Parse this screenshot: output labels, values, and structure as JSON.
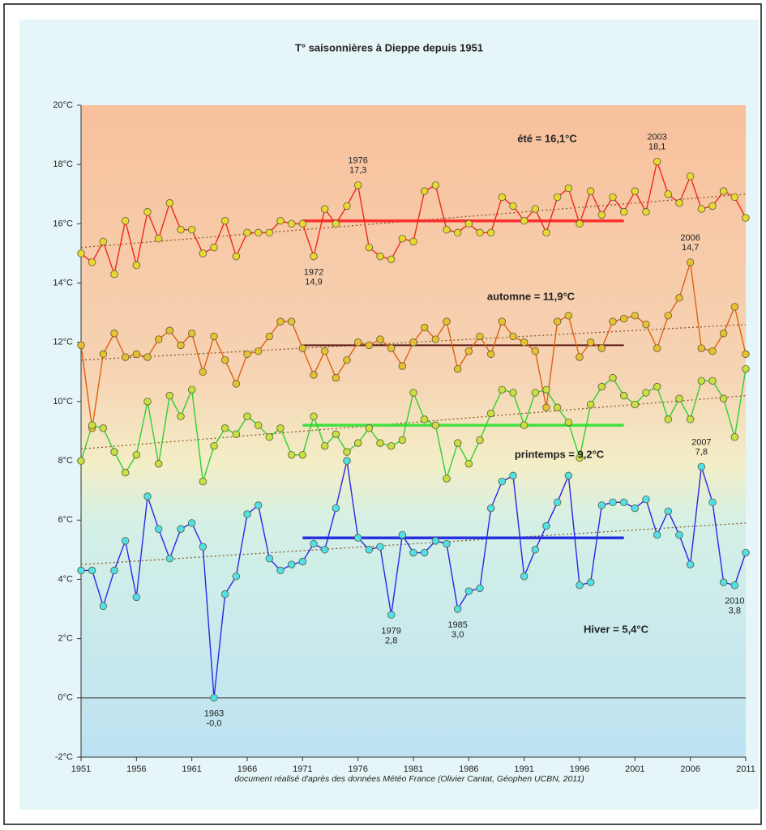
{
  "chart_data": {
    "type": "line",
    "title": "T° saisonnières à Dieppe depuis 1951",
    "caption": "document réalisé d'après des données Météo France (Olivier Cantat, Géophen UCBN, 2011)",
    "x": [
      1951,
      1952,
      1953,
      1954,
      1955,
      1956,
      1957,
      1958,
      1959,
      1960,
      1961,
      1962,
      1963,
      1964,
      1965,
      1966,
      1967,
      1968,
      1969,
      1970,
      1971,
      1972,
      1973,
      1974,
      1975,
      1976,
      1977,
      1978,
      1979,
      1980,
      1981,
      1982,
      1983,
      1984,
      1985,
      1986,
      1987,
      1988,
      1989,
      1990,
      1991,
      1992,
      1993,
      1994,
      1995,
      1996,
      1997,
      1998,
      1999,
      2000,
      2001,
      2002,
      2003,
      2004,
      2005,
      2006,
      2007,
      2008,
      2009,
      2010,
      2011
    ],
    "xlim": [
      1951,
      2011
    ],
    "xticks": [
      1951,
      1956,
      1961,
      1966,
      1971,
      1976,
      1981,
      1986,
      1991,
      1996,
      2001,
      2006,
      2011
    ],
    "ylim": [
      -2,
      20
    ],
    "yticks": [
      {
        "value": -2,
        "label": "-2°C"
      },
      {
        "value": 0,
        "label": "0°C"
      },
      {
        "value": 2,
        "label": "2°C"
      },
      {
        "value": 4,
        "label": "4°C"
      },
      {
        "value": 6,
        "label": "6°C"
      },
      {
        "value": 8,
        "label": "8°C"
      },
      {
        "value": 10,
        "label": "10°C"
      },
      {
        "value": 12,
        "label": "12°C"
      },
      {
        "value": 14,
        "label": "14°C"
      },
      {
        "value": 16,
        "label": "16°C"
      },
      {
        "value": 18,
        "label": "18°C"
      },
      {
        "value": 20,
        "label": "20°C"
      }
    ],
    "normal_period": [
      1971,
      2000
    ],
    "series": [
      {
        "color": "#f02818",
        "marker_color": "#e8d830",
        "mean_color": "#f83030",
        "values": [
          15.0,
          14.7,
          15.4,
          14.3,
          16.1,
          14.6,
          16.4,
          15.5,
          16.7,
          15.8,
          15.8,
          15.0,
          15.2,
          16.1,
          14.9,
          15.7,
          15.7,
          15.7,
          16.1,
          16.0,
          16.0,
          14.9,
          16.5,
          16.0,
          16.6,
          17.3,
          15.2,
          14.9,
          14.8,
          15.5,
          15.4,
          17.1,
          17.3,
          15.8,
          15.7,
          16.0,
          15.7,
          15.7,
          16.9,
          16.6,
          16.1,
          16.5,
          15.7,
          16.9,
          17.2,
          16.0,
          17.1,
          16.3,
          16.9,
          16.4,
          17.1,
          16.4,
          18.1,
          17.0,
          16.7,
          17.6,
          16.5,
          16.6,
          17.1,
          16.9,
          16.2
        ],
        "value_labels": [
          null,
          null,
          null,
          null,
          null,
          null,
          null,
          null,
          null,
          null,
          null,
          null,
          null,
          null,
          null,
          null,
          null,
          null,
          null,
          null,
          null,
          "14,9",
          null,
          null,
          null,
          "17,3",
          null,
          null,
          null,
          null,
          null,
          null,
          null,
          null,
          null,
          null,
          null,
          null,
          null,
          null,
          null,
          null,
          null,
          null,
          null,
          null,
          null,
          null,
          null,
          null,
          null,
          null,
          "18,1",
          null,
          null,
          null,
          null,
          null,
          null,
          null,
          null
        ],
        "trend": [
          15.2,
          17.0
        ],
        "normal": 16.1,
        "normal_label": "été = 16,1°C"
      },
      {
        "color": "#e06010",
        "marker_color": "#e8c030",
        "mean_color": "#5a1a10",
        "values": [
          11.9,
          9.1,
          11.6,
          12.3,
          11.5,
          11.6,
          11.5,
          12.1,
          12.4,
          11.9,
          12.3,
          11.0,
          12.2,
          11.4,
          10.6,
          11.6,
          11.7,
          12.2,
          12.7,
          12.7,
          11.8,
          10.9,
          11.7,
          10.8,
          11.4,
          12.0,
          11.9,
          12.1,
          11.8,
          11.2,
          12.0,
          12.5,
          12.1,
          12.7,
          11.1,
          11.7,
          12.2,
          11.6,
          12.7,
          12.2,
          12.0,
          11.7,
          9.8,
          12.7,
          12.9,
          11.5,
          12.0,
          11.8,
          12.7,
          12.8,
          12.9,
          12.6,
          11.8,
          12.9,
          13.5,
          14.7,
          11.8,
          11.7,
          12.3,
          13.2,
          11.6
        ],
        "value_labels": [
          null,
          null,
          null,
          null,
          null,
          null,
          null,
          null,
          null,
          null,
          null,
          null,
          null,
          null,
          null,
          null,
          null,
          null,
          null,
          null,
          null,
          null,
          null,
          null,
          null,
          null,
          null,
          null,
          null,
          null,
          null,
          null,
          null,
          null,
          null,
          null,
          null,
          null,
          null,
          null,
          null,
          null,
          null,
          null,
          null,
          null,
          null,
          null,
          null,
          null,
          null,
          null,
          null,
          null,
          null,
          "14,7",
          null,
          null,
          null,
          null,
          null
        ],
        "trend": [
          11.4,
          12.6
        ],
        "normal": 11.9,
        "normal_label": "automne = 11,9°C"
      },
      {
        "color": "#30d030",
        "marker_color": "#c8e040",
        "mean_color": "#40e040",
        "values": [
          8.0,
          9.2,
          9.1,
          8.3,
          7.6,
          8.2,
          10.0,
          7.9,
          10.2,
          9.5,
          10.4,
          7.3,
          8.5,
          9.1,
          8.9,
          9.5,
          9.2,
          8.8,
          9.1,
          8.2,
          8.2,
          9.5,
          8.5,
          8.9,
          8.3,
          8.6,
          9.1,
          8.6,
          8.5,
          8.7,
          10.3,
          9.4,
          9.2,
          7.4,
          8.6,
          7.9,
          8.7,
          9.6,
          10.4,
          10.3,
          9.2,
          10.3,
          10.4,
          9.8,
          9.3,
          8.1,
          9.9,
          10.5,
          10.8,
          10.2,
          9.9,
          10.3,
          10.5,
          9.4,
          10.1,
          9.4,
          10.7,
          10.7,
          10.1,
          8.8,
          11.1
        ],
        "trend": [
          8.4,
          10.2
        ],
        "normal": 9.2,
        "normal_label": "printemps = 9,2°C"
      },
      {
        "color": "#2828e8",
        "marker_color": "#50e0e8",
        "mean_color": "#2830e0",
        "values": [
          4.3,
          4.3,
          3.1,
          4.3,
          5.3,
          3.4,
          6.8,
          5.7,
          4.7,
          5.7,
          5.9,
          5.1,
          0.0,
          3.5,
          4.1,
          6.2,
          6.5,
          4.7,
          4.3,
          4.5,
          4.6,
          5.2,
          5.0,
          6.4,
          8.0,
          5.4,
          5.0,
          5.1,
          2.8,
          5.5,
          4.9,
          4.9,
          5.3,
          5.2,
          3.0,
          3.6,
          3.7,
          6.4,
          7.3,
          7.5,
          4.1,
          5.0,
          5.8,
          6.6,
          7.5,
          3.8,
          3.9,
          6.5,
          6.6,
          6.6,
          6.4,
          6.7,
          5.5,
          6.3,
          5.5,
          4.5,
          7.8,
          6.6,
          3.9,
          3.8,
          4.9
        ],
        "value_labels": [
          null,
          null,
          null,
          null,
          null,
          null,
          null,
          null,
          null,
          null,
          null,
          null,
          "-0,0",
          null,
          null,
          null,
          null,
          null,
          null,
          null,
          null,
          null,
          null,
          null,
          null,
          null,
          null,
          null,
          "2,8",
          null,
          null,
          null,
          null,
          null,
          "3,0",
          null,
          null,
          null,
          null,
          null,
          null,
          null,
          null,
          null,
          null,
          null,
          null,
          null,
          null,
          null,
          null,
          null,
          null,
          null,
          null,
          null,
          "7,8",
          null,
          null,
          "3,8",
          null
        ],
        "trend": [
          4.5,
          5.9
        ],
        "normal": 5.4,
        "normal_label": "Hiver = 5,4°C"
      }
    ]
  }
}
